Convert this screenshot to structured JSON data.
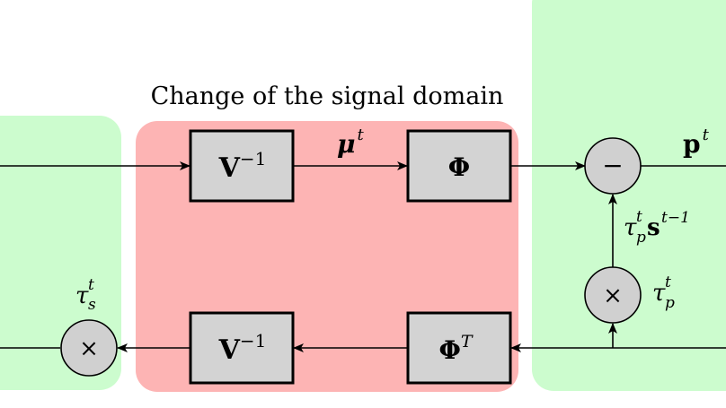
{
  "title": "Change of the signal domain",
  "colors": {
    "green_region": "#ccfcce",
    "red_region": "#fdb4b4",
    "block_fill": "#d3d3d3",
    "circle_fill": "#d0d0d0",
    "stroke": "#000000"
  },
  "blocks": {
    "v_inv_top": {
      "base": "V",
      "sup": "−1"
    },
    "phi_top": {
      "base": "Φ",
      "sup": ""
    },
    "v_inv_bottom": {
      "base": "V",
      "sup": "−1"
    },
    "phi_t_bottom": {
      "base": "Φ",
      "sup": "T"
    }
  },
  "nodes": {
    "minus": {
      "symbol": "−"
    },
    "times_right": {
      "symbol": "×"
    },
    "times_left": {
      "symbol": "×"
    }
  },
  "labels": {
    "mu": {
      "base": "μ",
      "sup": "t"
    },
    "p": {
      "base": "p",
      "sup": "t"
    },
    "tau_p_s": {
      "base": "τ",
      "sub": "p",
      "sup": "t",
      "base2": "s",
      "sup2": "t−1"
    },
    "tau_p": {
      "base": "τ",
      "sub": "p",
      "sup": "t"
    },
    "tau_s": {
      "base": "τ",
      "sub": "s",
      "sup": "t"
    }
  }
}
